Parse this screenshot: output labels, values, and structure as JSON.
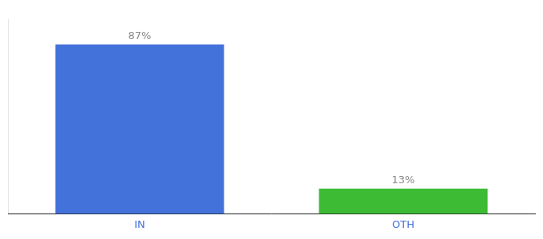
{
  "chart_data": {
    "type": "bar",
    "categories": [
      "IN",
      "OTH"
    ],
    "values": [
      87,
      13
    ],
    "value_labels": [
      "87%",
      "13%"
    ],
    "data_labels": true,
    "colors": [
      "#4472db",
      "#3dbb35"
    ],
    "ylim": [
      0,
      100
    ],
    "grid": false,
    "tick_labels": "x"
  }
}
